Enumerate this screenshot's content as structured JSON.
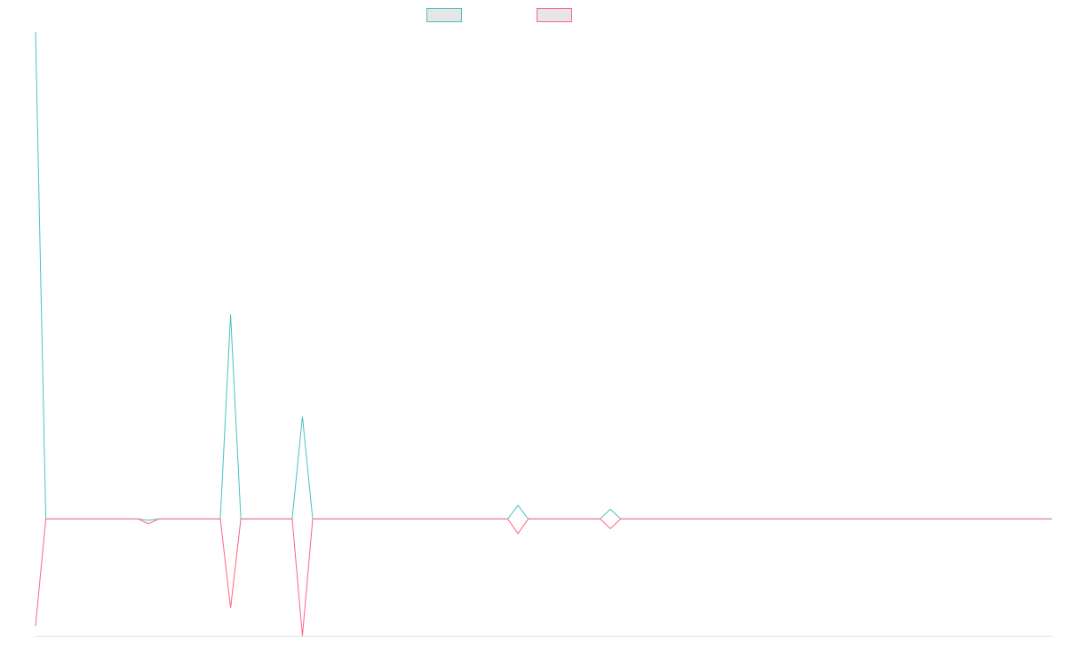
{
  "chart_data": {
    "type": "line",
    "title": "",
    "xlabel": "",
    "ylabel": "",
    "grid": false,
    "legend_position": "top-center",
    "x_count": 100,
    "colors": [
      "#4bc0c0",
      "#ff6384"
    ],
    "series": [
      {
        "name": "",
        "color": "#4bc0c0",
        "values": [
          100,
          0,
          0,
          0,
          0,
          0,
          0,
          0,
          0,
          0,
          0,
          -0.3,
          0,
          0,
          0,
          0,
          0,
          0,
          0,
          42,
          0,
          0,
          0,
          0,
          0,
          0,
          21,
          0,
          0,
          0,
          0,
          0,
          0,
          0,
          0,
          0,
          0,
          0,
          0,
          0,
          0,
          0,
          0,
          0,
          0,
          0,
          0,
          2.8,
          0,
          0,
          0,
          0,
          0,
          0,
          0,
          0,
          2,
          0,
          0,
          0,
          0,
          0,
          0,
          0,
          0,
          0,
          0,
          0,
          0,
          0,
          0,
          0,
          0,
          0,
          0,
          0,
          0,
          0,
          0,
          0,
          0,
          0,
          0,
          0,
          0,
          0,
          0,
          0,
          0,
          0,
          0,
          0,
          0,
          0,
          0,
          0,
          0,
          0,
          0,
          0
        ]
      },
      {
        "name": "",
        "color": "#ff6384",
        "values": [
          -22,
          0,
          0,
          0,
          0,
          0,
          0,
          0,
          0,
          0,
          0,
          -1,
          0,
          0,
          0,
          0,
          0,
          0,
          0,
          -18.3,
          0,
          0,
          0,
          0,
          0,
          0,
          -24,
          0,
          0,
          0,
          0,
          0,
          0,
          0,
          0,
          0,
          0,
          0,
          0,
          0,
          0,
          0,
          0,
          0,
          0,
          0,
          0,
          -3,
          0,
          0,
          0,
          0,
          0,
          0,
          0,
          0,
          -2,
          0,
          0,
          0,
          0,
          0,
          0,
          0,
          0,
          0,
          0,
          0,
          0,
          0,
          0,
          0,
          0,
          0,
          0,
          0,
          0,
          0,
          0,
          0,
          0,
          0,
          0,
          0,
          0,
          0,
          0,
          0,
          0,
          0,
          0,
          0,
          0,
          0,
          0,
          0,
          0,
          0,
          0,
          0
        ]
      }
    ],
    "ylim": [
      -24,
      100
    ]
  }
}
